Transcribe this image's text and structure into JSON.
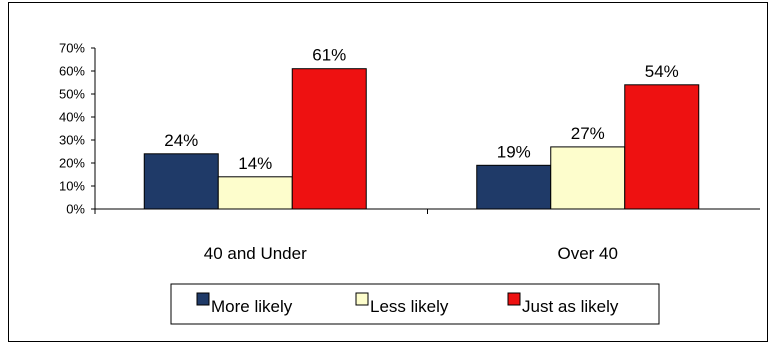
{
  "chart_data": {
    "type": "bar",
    "categories": [
      "40 and Under",
      "Over 40"
    ],
    "series": [
      {
        "name": "More likely",
        "values": [
          24,
          19
        ],
        "color": "#1f3a68"
      },
      {
        "name": "Less likely",
        "values": [
          14,
          27
        ],
        "color": "#fdfdcc"
      },
      {
        "name": "Just as likely",
        "values": [
          61,
          54
        ],
        "color": "#ee1111"
      }
    ],
    "data_labels": [
      [
        "24%",
        "19%"
      ],
      [
        "14%",
        "27%"
      ],
      [
        "61%",
        "54%"
      ]
    ],
    "ylim": [
      0,
      70
    ],
    "yticks": [
      0,
      10,
      20,
      30,
      40,
      50,
      60,
      70
    ],
    "ytick_labels": [
      "0%",
      "10%",
      "20%",
      "30%",
      "40%",
      "50%",
      "60%",
      "70%"
    ],
    "legend_position": "bottom",
    "grid": false,
    "title": "",
    "xlabel": "",
    "ylabel": ""
  }
}
